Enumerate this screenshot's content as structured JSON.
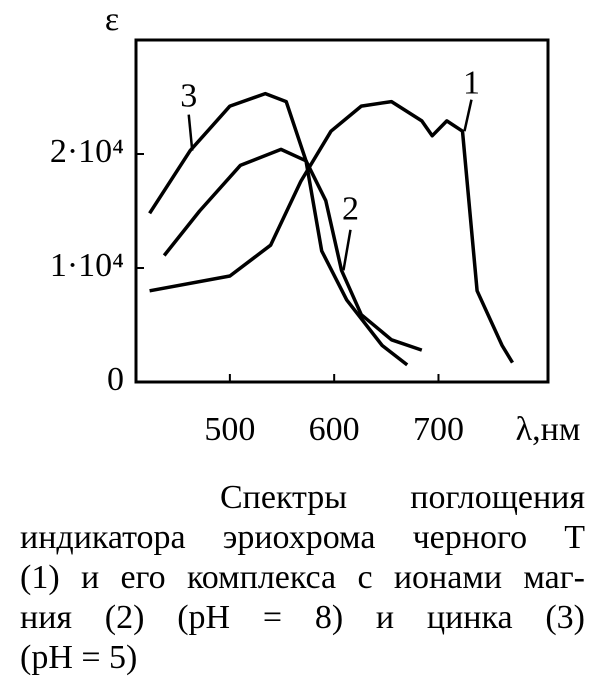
{
  "chart_data": {
    "type": "line",
    "ylabel": "ε",
    "xlabel": "λ,нм",
    "xlim": [
      410,
      805
    ],
    "ylim": [
      0,
      30000
    ],
    "xticks": [
      500,
      600,
      700
    ],
    "yticks": [
      0,
      {
        "value": 10000,
        "label": "1·10⁴"
      },
      {
        "value": 20000,
        "label": "2·10⁴"
      }
    ],
    "grid": false,
    "series": [
      {
        "name": "1",
        "color": "#000000",
        "x": [
          423,
          500,
          539,
          568,
          597,
          626,
          655,
          684,
          694,
          708,
          723,
          737,
          761,
          771
        ],
        "values": [
          8000,
          9300,
          12000,
          17600,
          22000,
          24200,
          24600,
          22900,
          21600,
          22900,
          22000,
          8000,
          3200,
          1700
        ]
      },
      {
        "name": "2",
        "color": "#000000",
        "x": [
          437,
          471,
          510,
          549,
          573,
          592,
          607,
          626,
          655,
          684
        ],
        "values": [
          11100,
          15000,
          19000,
          20400,
          19400,
          15900,
          9800,
          5900,
          3700,
          2800
        ]
      },
      {
        "name": "3",
        "color": "#000000",
        "x": [
          423,
          462,
          500,
          534,
          554,
          573,
          588,
          612,
          646,
          670
        ],
        "values": [
          14800,
          20300,
          24200,
          25300,
          24600,
          19400,
          11500,
          7200,
          3200,
          1500
        ]
      }
    ],
    "caption": [
      "Спектры поглощения",
      "индикатора эриохрома черного Т",
      "(1) и его комплекса с ионами маг-",
      "ния (2) (pH = 8) и цинка (3)",
      "(pH = 5)"
    ]
  }
}
